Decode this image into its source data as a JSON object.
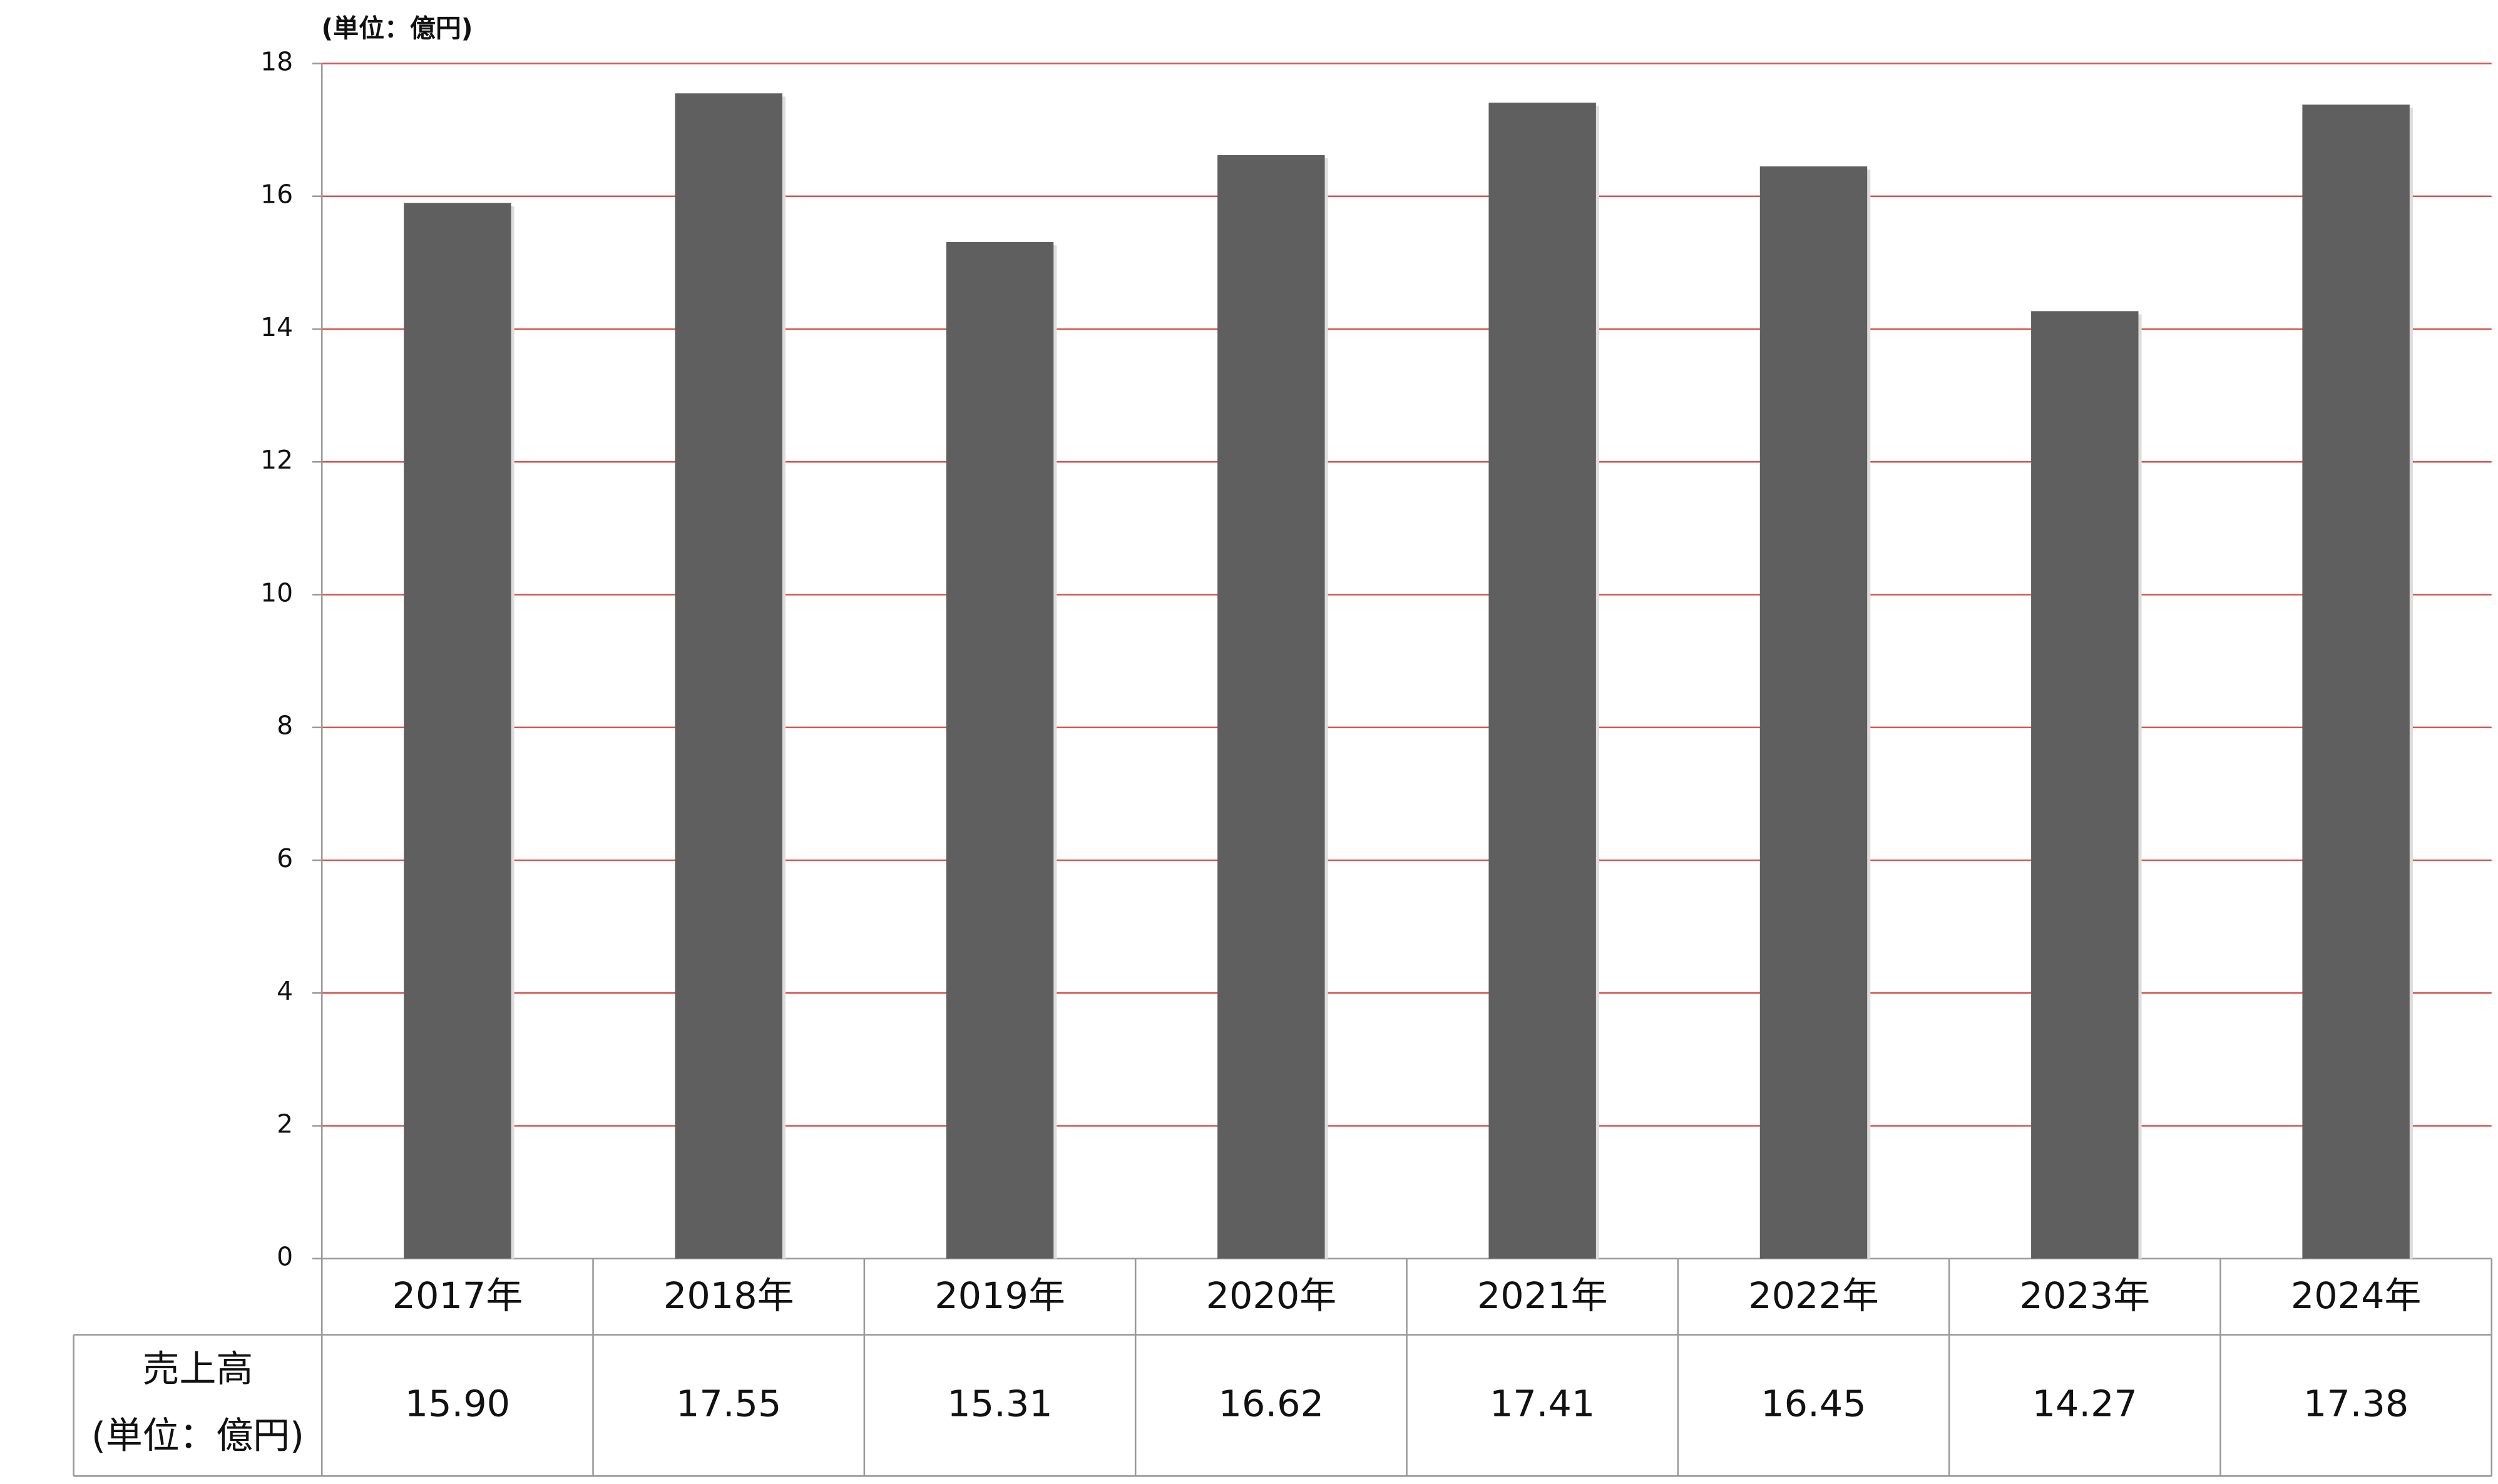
{
  "chart_data": {
    "type": "bar",
    "unit_label": "(単位：億円)",
    "categories": [
      "2017年",
      "2018年",
      "2019年",
      "2020年",
      "2021年",
      "2022年",
      "2023年",
      "2024年"
    ],
    "values": [
      15.9,
      17.55,
      15.31,
      16.62,
      17.41,
      16.45,
      14.27,
      17.38
    ],
    "value_labels": [
      "15.90",
      "17.55",
      "15.31",
      "16.62",
      "17.41",
      "16.45",
      "14.27",
      "17.38"
    ],
    "table_row_label": [
      "売上高",
      "(単位：億円)"
    ],
    "color": "#5f5f5f",
    "grid": true,
    "grid_color": "#d9534f",
    "ylim": [
      0,
      18
    ],
    "yticks": [
      0,
      2,
      4,
      6,
      8,
      10,
      12,
      14,
      16,
      18
    ]
  }
}
